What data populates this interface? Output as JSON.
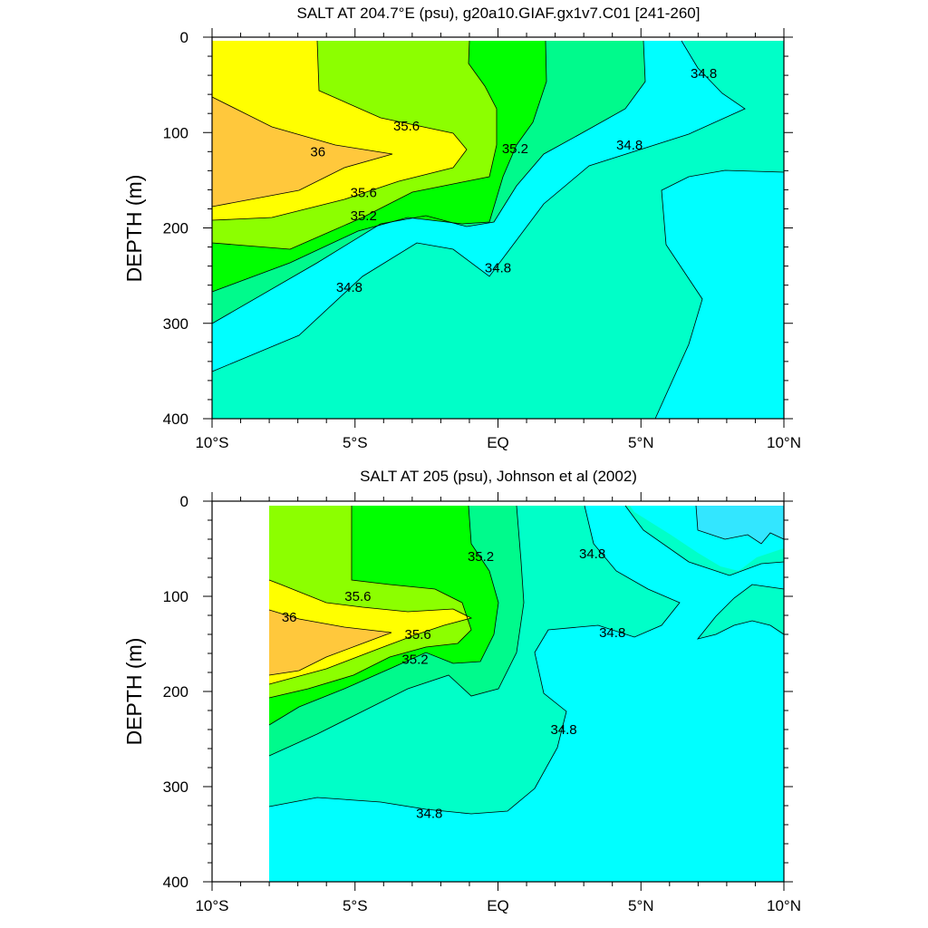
{
  "colors": {
    "below_34_8": "#00ffff",
    "c34_8_35_2": "#00ffc8",
    "c35_2_35_4": "#00fa8c",
    "c35_4_35_6": "#00ff00",
    "c35_6_36_0": "#8cff00",
    "c36_0_36_4": "#ffff00",
    "above_36": "#ffc83c",
    "topright_lowest": "#33e6ff",
    "mask": "#ffffff"
  },
  "chart_data": [
    {
      "type": "contour",
      "title": "SALT AT 204.7°E (psu), g20a10.GIAF.gx1v7.C01 [241-260]",
      "ylabel": "DEPTH (m)",
      "xlim": [
        -10,
        10
      ],
      "ylim": [
        400,
        0
      ],
      "x_ticks": [
        -10,
        -5,
        0,
        5,
        10
      ],
      "x_tick_labels": [
        "10°S",
        "5°S",
        "EQ",
        "5°N",
        "10°N"
      ],
      "y_ticks": [
        0,
        100,
        200,
        300,
        400
      ],
      "y_tick_labels": [
        "0",
        "100",
        "200",
        "300",
        "400"
      ],
      "contour_labels": [
        {
          "text": "35.6",
          "x": -3.2,
          "y": 93
        },
        {
          "text": "36",
          "x": -6.3,
          "y": 120
        },
        {
          "text": "35.6",
          "x": -4.7,
          "y": 163
        },
        {
          "text": "35.2",
          "x": -4.7,
          "y": 187
        },
        {
          "text": "34.8",
          "x": -5.2,
          "y": 262
        },
        {
          "text": "34.8",
          "x": 0.0,
          "y": 242
        },
        {
          "text": "35.2",
          "x": 0.6,
          "y": 117
        },
        {
          "text": "34.8",
          "x": 4.6,
          "y": 113
        },
        {
          "text": "34.8",
          "x": 7.2,
          "y": 38
        }
      ]
    },
    {
      "type": "contour",
      "title": "SALT AT 205 (psu), Johnson et al (2002)",
      "ylabel": "DEPTH (m)",
      "xlim": [
        -10,
        10
      ],
      "ylim": [
        400,
        0
      ],
      "x_ticks": [
        -10,
        -5,
        0,
        5,
        10
      ],
      "x_tick_labels": [
        "10°S",
        "5°S",
        "EQ",
        "5°N",
        "10°N"
      ],
      "y_ticks": [
        0,
        100,
        200,
        300,
        400
      ],
      "y_tick_labels": [
        "0",
        "100",
        "200",
        "300",
        "400"
      ],
      "contour_labels": [
        {
          "text": "35.6",
          "x": -4.9,
          "y": 100
        },
        {
          "text": "36",
          "x": -7.3,
          "y": 122
        },
        {
          "text": "35.6",
          "x": -2.8,
          "y": 140
        },
        {
          "text": "35.2",
          "x": -2.9,
          "y": 166
        },
        {
          "text": "35.2",
          "x": -0.6,
          "y": 58
        },
        {
          "text": "34.8",
          "x": 3.3,
          "y": 55
        },
        {
          "text": "34.8",
          "x": 4.0,
          "y": 138
        },
        {
          "text": "34.8",
          "x": 2.3,
          "y": 240
        },
        {
          "text": "34.8",
          "x": -2.4,
          "y": 328
        }
      ]
    }
  ]
}
